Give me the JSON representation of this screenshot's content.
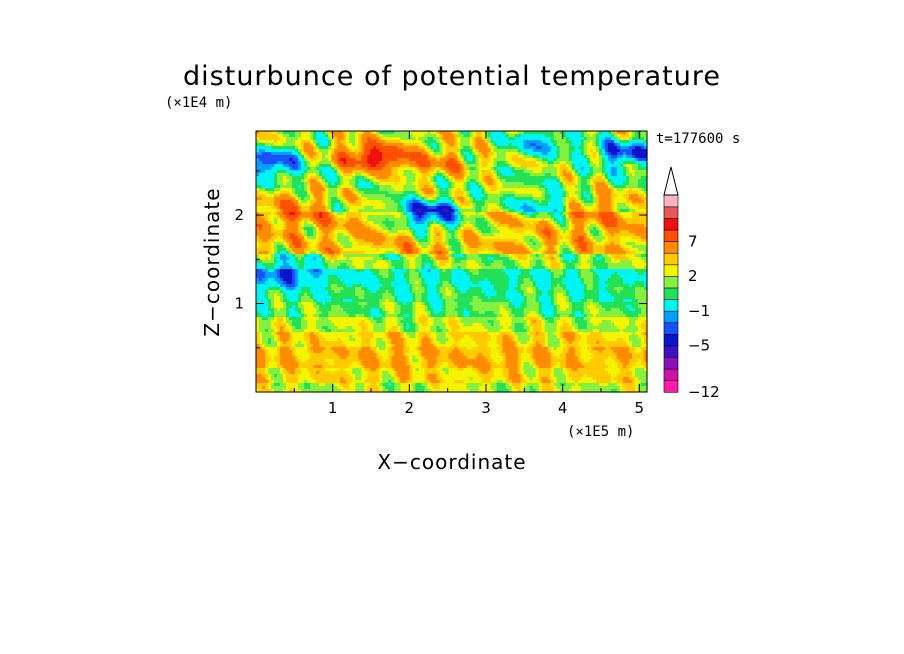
{
  "chart_data": {
    "type": "heatmap",
    "title": "disturbunce of potential temperature",
    "xlabel": "X−coordinate",
    "ylabel": "Z−coordinate",
    "x_unit": "(×1E5 m)",
    "y_unit": "(×1E4 m)",
    "time_label": "t=177600 s",
    "xlim": [
      0,
      5.1
    ],
    "ylim": [
      0,
      2.95
    ],
    "xticks": [
      1,
      2,
      3,
      4,
      5
    ],
    "xtick_labels": [
      "1",
      "2",
      "3",
      "4",
      "5"
    ],
    "yticks": [
      1,
      2
    ],
    "ytick_labels": [
      "1",
      "2"
    ],
    "colorbar": {
      "levels": [
        -12,
        -10,
        -8,
        -7,
        -5,
        -4,
        -3,
        -1,
        0,
        1,
        2,
        3,
        5,
        7,
        8,
        10
      ],
      "colors": [
        "#ff1aa8",
        "#cc11a8",
        "#8a10b8",
        "#3d10c8",
        "#0a16c8",
        "#1c50ff",
        "#00a0ff",
        "#00f4f4",
        "#22e058",
        "#86f040",
        "#f4f400",
        "#ffca00",
        "#ff8c00",
        "#ff5000",
        "#f01010",
        "#e85858",
        "#f8b4c4"
      ],
      "labeled_values": [
        7,
        2,
        -1,
        -5,
        -12
      ],
      "labels": [
        "7",
        "2",
        "−1",
        "−5",
        "−12"
      ],
      "extend": "max"
    },
    "bands": [
      {
        "y": [
          0.0,
          0.1
        ],
        "base": 1.0
      },
      {
        "y": [
          0.1,
          0.28
        ],
        "base": 2.0
      },
      {
        "y": [
          0.28,
          0.5
        ],
        "base": 2.7
      },
      {
        "y": [
          0.5,
          0.68
        ],
        "base": 2.0
      },
      {
        "y": [
          0.68,
          0.85
        ],
        "base": 1.0
      },
      {
        "y": [
          0.85,
          1.02
        ],
        "base": 0.0
      },
      {
        "y": [
          1.02,
          1.2
        ],
        "base": -0.6
      },
      {
        "y": [
          1.2,
          1.4
        ],
        "base": -1.0
      },
      {
        "y": [
          1.4,
          1.55
        ],
        "base": 0.6
      },
      {
        "y": [
          1.55,
          1.85
        ],
        "base": 2.6
      },
      {
        "y": [
          1.85,
          2.05
        ],
        "base": 2.8
      },
      {
        "y": [
          2.05,
          2.3
        ],
        "base": 1.0
      },
      {
        "y": [
          2.3,
          2.55
        ],
        "base": 0.4
      },
      {
        "y": [
          2.55,
          2.95
        ],
        "base": 1.2
      }
    ],
    "features": [
      {
        "x": 1.55,
        "y": 2.65,
        "value": 8.0
      },
      {
        "x": 2.4,
        "y": 2.55,
        "value": 4.0
      },
      {
        "x": 0.15,
        "y": 2.6,
        "value": -5.0
      },
      {
        "x": 4.85,
        "y": 2.7,
        "value": -5.0
      },
      {
        "x": 3.7,
        "y": 2.82,
        "value": -3.0
      },
      {
        "x": 0.4,
        "y": 1.36,
        "value": -5.0
      },
      {
        "x": 2.25,
        "y": 2.0,
        "value": -5.0
      },
      {
        "x": 3.8,
        "y": 2.1,
        "value": -3.0
      },
      {
        "x": 2.8,
        "y": 1.8,
        "value": 1.5
      },
      {
        "x": 4.4,
        "y": 2.1,
        "value": 4.0
      },
      {
        "x": 0.5,
        "y": 2.1,
        "value": 4.0
      },
      {
        "x": 1.8,
        "y": 0.35,
        "value": 3.0
      },
      {
        "x": 3.1,
        "y": 0.35,
        "value": 3.0
      }
    ]
  }
}
